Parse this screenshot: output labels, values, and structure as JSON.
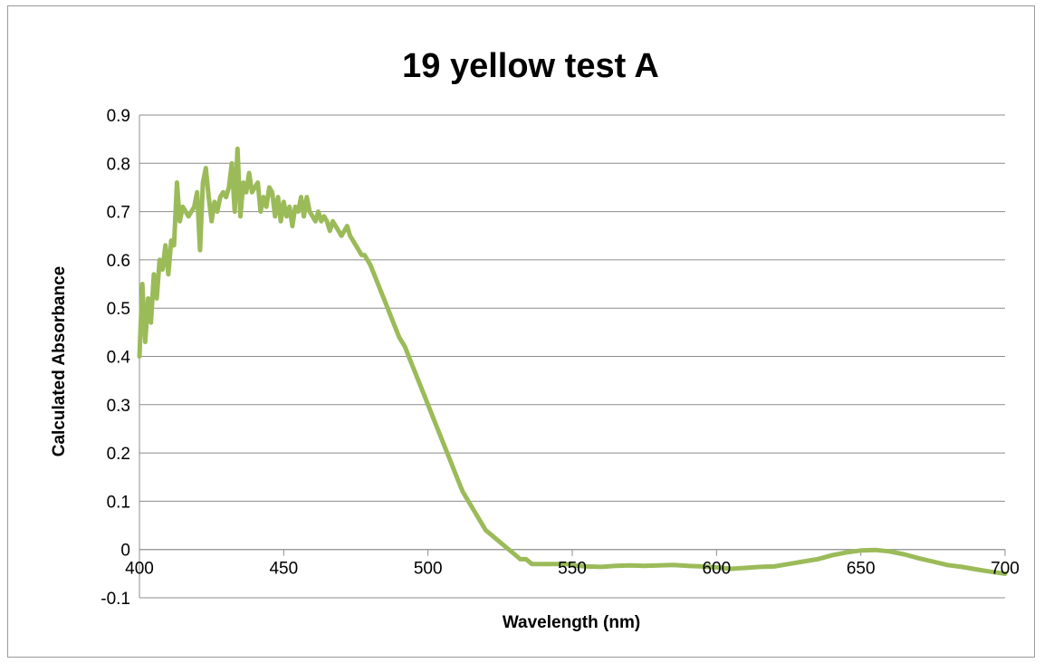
{
  "chart_data": {
    "type": "line",
    "title": "19 yellow test A",
    "xlabel": "Wavelength (nm)",
    "ylabel": "Calculated Absorbance",
    "xlim": [
      400,
      700
    ],
    "ylim": [
      -0.1,
      0.9
    ],
    "x_ticks": [
      400,
      450,
      500,
      550,
      600,
      650,
      700
    ],
    "y_ticks": [
      -0.1,
      0,
      0.1,
      0.2,
      0.3,
      0.4,
      0.5,
      0.6,
      0.7,
      0.8,
      0.9
    ],
    "x_tick_labels": [
      "400",
      "450",
      "500",
      "550",
      "600",
      "650",
      "700"
    ],
    "y_tick_labels": [
      "-0.1",
      "0",
      "0.1",
      "0.2",
      "0.3",
      "0.4",
      "0.5",
      "0.6",
      "0.7",
      "0.8",
      "0.9"
    ],
    "grid": true,
    "legend": "none",
    "series": [
      {
        "color": "#9bbb59",
        "x": [
          400,
          401,
          402,
          403,
          404,
          405,
          406,
          407,
          408,
          409,
          410,
          411,
          412,
          413,
          414,
          415,
          416,
          417,
          418,
          419,
          420,
          421,
          422,
          423,
          424,
          425,
          426,
          427,
          428,
          429,
          430,
          431,
          432,
          433,
          434,
          435,
          436,
          437,
          438,
          439,
          440,
          441,
          442,
          443,
          444,
          445,
          446,
          447,
          448,
          449,
          450,
          451,
          452,
          453,
          454,
          455,
          456,
          457,
          458,
          459,
          460,
          461,
          462,
          463,
          464,
          465,
          466,
          467,
          468,
          469,
          470,
          471,
          472,
          473,
          474,
          475,
          476,
          477,
          478,
          479,
          480,
          482,
          484,
          486,
          488,
          490,
          492,
          494,
          496,
          498,
          500,
          502,
          504,
          506,
          508,
          510,
          512,
          514,
          516,
          518,
          520,
          522,
          524,
          526,
          528,
          530,
          532,
          534,
          536,
          538,
          540,
          542,
          544,
          546,
          548,
          550,
          555,
          560,
          565,
          570,
          575,
          580,
          585,
          590,
          595,
          600,
          605,
          610,
          615,
          620,
          625,
          630,
          635,
          640,
          645,
          650,
          655,
          660,
          665,
          670,
          675,
          680,
          685,
          690,
          695,
          700
        ],
        "values": [
          0.4,
          0.55,
          0.43,
          0.52,
          0.47,
          0.57,
          0.52,
          0.6,
          0.58,
          0.63,
          0.57,
          0.64,
          0.63,
          0.76,
          0.68,
          0.71,
          0.7,
          0.69,
          0.7,
          0.71,
          0.74,
          0.62,
          0.76,
          0.79,
          0.73,
          0.68,
          0.72,
          0.7,
          0.73,
          0.74,
          0.73,
          0.75,
          0.8,
          0.7,
          0.83,
          0.69,
          0.76,
          0.74,
          0.78,
          0.74,
          0.75,
          0.76,
          0.7,
          0.73,
          0.71,
          0.75,
          0.74,
          0.69,
          0.73,
          0.68,
          0.72,
          0.69,
          0.71,
          0.67,
          0.71,
          0.7,
          0.73,
          0.69,
          0.73,
          0.7,
          0.69,
          0.68,
          0.7,
          0.68,
          0.69,
          0.68,
          0.66,
          0.68,
          0.67,
          0.66,
          0.65,
          0.66,
          0.67,
          0.65,
          0.64,
          0.63,
          0.62,
          0.61,
          0.61,
          0.6,
          0.59,
          0.56,
          0.53,
          0.5,
          0.47,
          0.44,
          0.42,
          0.39,
          0.36,
          0.33,
          0.3,
          0.27,
          0.24,
          0.21,
          0.18,
          0.15,
          0.12,
          0.1,
          0.08,
          0.06,
          0.04,
          0.03,
          0.02,
          0.01,
          0.0,
          -0.01,
          -0.02,
          -0.02,
          -0.03,
          -0.03,
          -0.03,
          -0.03,
          -0.03,
          -0.03,
          -0.03,
          -0.033,
          -0.035,
          -0.036,
          -0.034,
          -0.033,
          -0.034,
          -0.033,
          -0.032,
          -0.034,
          -0.035,
          -0.037,
          -0.04,
          -0.038,
          -0.036,
          -0.035,
          -0.03,
          -0.025,
          -0.02,
          -0.012,
          -0.006,
          -0.002,
          -0.001,
          -0.004,
          -0.01,
          -0.018,
          -0.025,
          -0.032,
          -0.036,
          -0.041,
          -0.046,
          -0.05
        ]
      }
    ]
  }
}
